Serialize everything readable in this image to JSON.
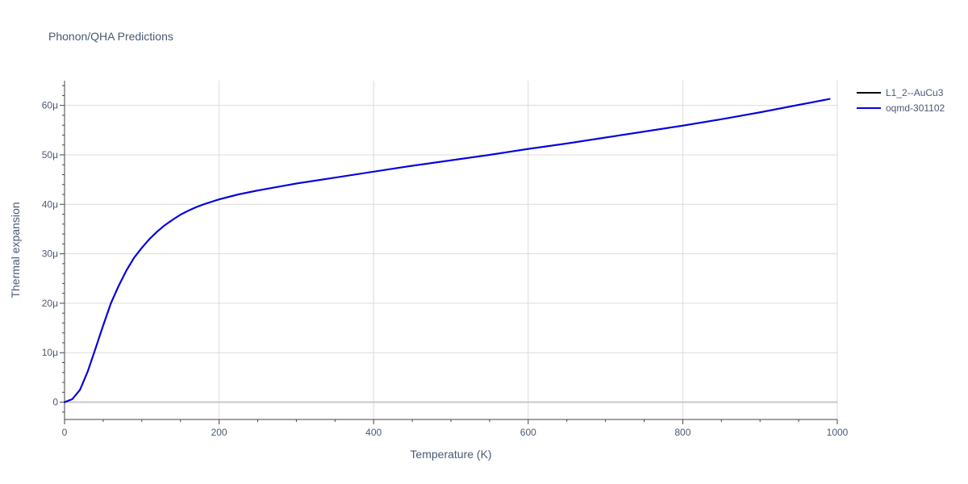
{
  "chart_data": {
    "type": "line",
    "title": "Phonon/QHA Predictions",
    "xlabel": "Temperature (K)",
    "ylabel": "Thermal expansion",
    "xlim": [
      0,
      1000
    ],
    "ylim": [
      -3.5e-06,
      6.5e-05
    ],
    "x_ticks": [
      0,
      200,
      400,
      600,
      800,
      1000
    ],
    "x_tick_labels": [
      "0",
      "200",
      "400",
      "600",
      "800",
      "1000"
    ],
    "y_ticks": [
      0,
      1e-05,
      2e-05,
      3e-05,
      4e-05,
      5e-05,
      6e-05
    ],
    "y_tick_labels": [
      "0",
      "10μ",
      "20μ",
      "30μ",
      "40μ",
      "50μ",
      "60μ"
    ],
    "grid": true,
    "legend_position": "top-right",
    "series": [
      {
        "name": "L1_2--AuCu3",
        "color": "#000000",
        "x": [
          0,
          10,
          20,
          30,
          40,
          50,
          60,
          70,
          80,
          90,
          100,
          110,
          120,
          130,
          140,
          150,
          160,
          170,
          180,
          190,
          200,
          225,
          250,
          275,
          300,
          350,
          400,
          450,
          500,
          550,
          600,
          650,
          700,
          750,
          800,
          850,
          900,
          950,
          990
        ],
        "y": [
          0,
          6e-07,
          2.5e-06,
          6.2e-06,
          1.08e-05,
          1.55e-05,
          2e-05,
          2.35e-05,
          2.66e-05,
          2.92e-05,
          3.12e-05,
          3.3e-05,
          3.45e-05,
          3.58e-05,
          3.69e-05,
          3.79e-05,
          3.87e-05,
          3.94e-05,
          4e-05,
          4.05e-05,
          4.1e-05,
          4.2e-05,
          4.28e-05,
          4.35e-05,
          4.42e-05,
          4.54e-05,
          4.66e-05,
          4.78e-05,
          4.89e-05,
          5e-05,
          5.12e-05,
          5.23e-05,
          5.35e-05,
          5.47e-05,
          5.59e-05,
          5.72e-05,
          5.86e-05,
          6.01e-05,
          6.13e-05
        ]
      },
      {
        "name": "oqmd-301102",
        "color": "#0000ee",
        "x": [
          0,
          10,
          20,
          30,
          40,
          50,
          60,
          70,
          80,
          90,
          100,
          110,
          120,
          130,
          140,
          150,
          160,
          170,
          180,
          190,
          200,
          225,
          250,
          275,
          300,
          350,
          400,
          450,
          500,
          550,
          600,
          650,
          700,
          750,
          800,
          850,
          900,
          950,
          990
        ],
        "y": [
          0,
          6e-07,
          2.5e-06,
          6.2e-06,
          1.08e-05,
          1.55e-05,
          2e-05,
          2.35e-05,
          2.66e-05,
          2.92e-05,
          3.12e-05,
          3.3e-05,
          3.45e-05,
          3.58e-05,
          3.69e-05,
          3.79e-05,
          3.87e-05,
          3.94e-05,
          4e-05,
          4.05e-05,
          4.1e-05,
          4.2e-05,
          4.28e-05,
          4.35e-05,
          4.42e-05,
          4.54e-05,
          4.66e-05,
          4.78e-05,
          4.89e-05,
          5e-05,
          5.12e-05,
          5.23e-05,
          5.35e-05,
          5.47e-05,
          5.59e-05,
          5.72e-05,
          5.86e-05,
          6.01e-05,
          6.13e-05
        ]
      }
    ]
  }
}
